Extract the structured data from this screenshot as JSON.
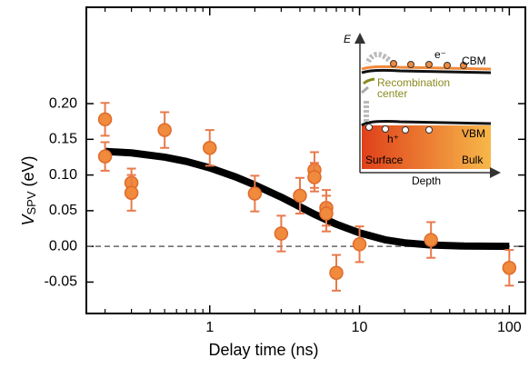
{
  "chart_data": {
    "type": "scatter",
    "x_label": "Delay time (ns)",
    "y_label": {
      "main": "V",
      "sub": "SPV",
      "unit": "(eV)"
    },
    "xscale": "log",
    "xlim": [
      0.15,
      128
    ],
    "ylim": [
      -0.094,
      0.335
    ],
    "xticks": [
      1,
      10,
      100
    ],
    "xminorticks": [
      0.2,
      0.3,
      0.4,
      0.5,
      0.6,
      0.7,
      0.8,
      0.9,
      2,
      3,
      4,
      5,
      6,
      7,
      8,
      9,
      20,
      30,
      40,
      50,
      60,
      70,
      80,
      90
    ],
    "yticks": [
      {
        "value": 0.2,
        "label": "0.20"
      },
      0.15,
      {
        "value": 0.1,
        "label": "0.10"
      },
      0.05,
      {
        "value": 0,
        "label": "0.00"
      },
      -0.05
    ],
    "zero_line": true,
    "color": "#f08a3c",
    "edge_color": "#e06a2a",
    "error_color": "#e87a4c",
    "x": [
      0.2,
      0.2,
      0.3,
      0.3,
      0.5,
      1,
      2,
      3,
      4,
      5,
      5,
      6,
      6,
      7,
      10,
      30,
      100
    ],
    "values": [
      0.178,
      0.126,
      0.089,
      0.075,
      0.163,
      0.138,
      0.074,
      0.018,
      0.071,
      0.107,
      0.097,
      0.054,
      0.046,
      -0.037,
      0.003,
      0.009,
      -0.03
    ],
    "errors": [
      0.023,
      0.02,
      0.02,
      0.025,
      0.025,
      0.025,
      0.025,
      0.025,
      0.025,
      0.025,
      0.02,
      0.025,
      0.025,
      0.025,
      0.025,
      0.025,
      0.025
    ],
    "fit": {
      "color": "#000000",
      "x": [
        0.2,
        0.3,
        0.5,
        0.7,
        1,
        1.5,
        2,
        3,
        5,
        7,
        10,
        15,
        20,
        30,
        50,
        100
      ],
      "values": [
        0.133,
        0.131,
        0.125,
        0.119,
        0.11,
        0.097,
        0.086,
        0.069,
        0.045,
        0.031,
        0.019,
        0.009,
        0.005,
        0.002,
        0.0005,
        0
      ]
    },
    "inset": {
      "axis": "E",
      "electron": "e⁻",
      "cbm": "CBM",
      "recombination": "Recombination",
      "center": "center",
      "hole": "h⁺",
      "vbm": "VBM",
      "surface": "Surface",
      "bulk": "Bulk",
      "depth": "Depth"
    }
  }
}
